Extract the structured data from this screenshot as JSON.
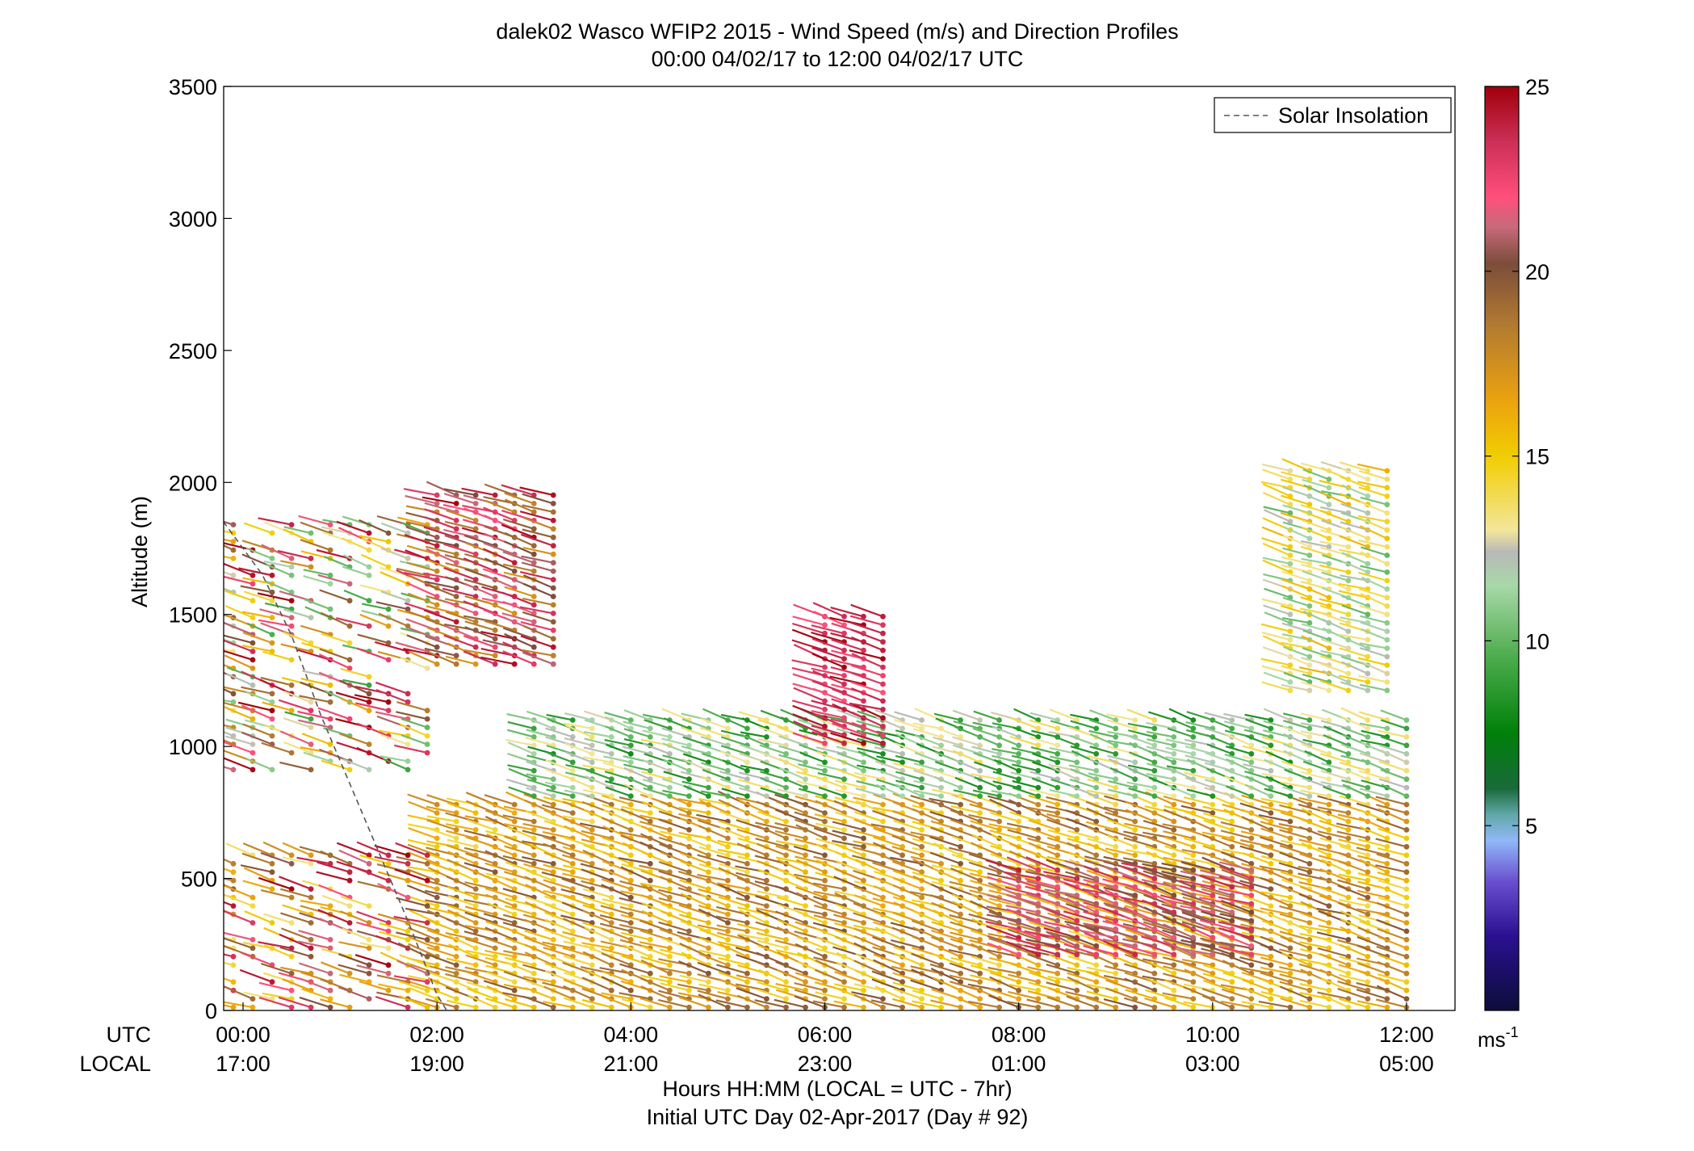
{
  "chart_data": {
    "type": "scatter",
    "title": "dalek02 Wasco WFIP2 2015 - Wind Speed (m/s) and Direction Profiles",
    "subtitle": "00:00 04/02/17 to 12:00 04/02/17  UTC",
    "xlabel": "Hours HH:MM  (LOCAL = UTC - 7hr)",
    "xlabel2": "Initial UTC Day 02-Apr-2017 (Day # 92)",
    "ylabel": "Altitude (m)",
    "xlim": [
      -0.2,
      12.5
    ],
    "ylim": [
      0,
      3500
    ],
    "row_labels": [
      "UTC",
      "LOCAL"
    ],
    "x_ticks": [
      {
        "value": 0,
        "utc": "00:00",
        "local": "17:00"
      },
      {
        "value": 2,
        "utc": "02:00",
        "local": "19:00"
      },
      {
        "value": 4,
        "utc": "04:00",
        "local": "21:00"
      },
      {
        "value": 6,
        "utc": "06:00",
        "local": "23:00"
      },
      {
        "value": 8,
        "utc": "08:00",
        "local": "01:00"
      },
      {
        "value": 10,
        "utc": "10:00",
        "local": "03:00"
      },
      {
        "value": 12,
        "utc": "12:00",
        "local": "05:00"
      }
    ],
    "y_ticks": [
      "0",
      "500",
      "1000",
      "1500",
      "2000",
      "2500",
      "3000",
      "3500"
    ],
    "legend": {
      "label": "Solar Insolation",
      "placement": "top-right"
    },
    "solar_insolation": {
      "x": [
        -0.5,
        0.2,
        0.5,
        0.8,
        1.1,
        1.4,
        1.7,
        2.0,
        2.1
      ],
      "y": [
        2000,
        1650,
        1420,
        1120,
        860,
        600,
        340,
        60,
        0
      ]
    },
    "colorbar": {
      "ticks": [
        "5",
        "10",
        "15",
        "20",
        "25"
      ],
      "tick_values": [
        5,
        10,
        15,
        20,
        25
      ],
      "range": [
        0,
        25
      ],
      "unit": "ms",
      "unit_exp": "-1",
      "stops": [
        {
          "v": 0,
          "c": "#0d0d3a"
        },
        {
          "v": 2,
          "c": "#2a1090"
        },
        {
          "v": 3.5,
          "c": "#6a50d0"
        },
        {
          "v": 4.6,
          "c": "#90b8f8"
        },
        {
          "v": 5.3,
          "c": "#60a8a8"
        },
        {
          "v": 6.0,
          "c": "#1a6a3a"
        },
        {
          "v": 7.5,
          "c": "#00800a"
        },
        {
          "v": 9.5,
          "c": "#4aab4a"
        },
        {
          "v": 11.5,
          "c": "#a8d8a8"
        },
        {
          "v": 12.4,
          "c": "#b8b8b8"
        },
        {
          "v": 13,
          "c": "#f3e69a"
        },
        {
          "v": 15,
          "c": "#f1cd00"
        },
        {
          "v": 16.5,
          "c": "#eba20f"
        },
        {
          "v": 18.5,
          "c": "#b37b30"
        },
        {
          "v": 20.2,
          "c": "#7c4d3a"
        },
        {
          "v": 21.2,
          "c": "#c66a7a"
        },
        {
          "v": 22.0,
          "c": "#ff4f7b"
        },
        {
          "v": 23.5,
          "c": "#cc2f57"
        },
        {
          "v": 25,
          "c": "#a0000a"
        }
      ]
    },
    "wind_regions": [
      {
        "x": [
          2.0,
          12.0
        ],
        "alt": [
          0,
          800
        ],
        "speed_low": 14,
        "speed_high": 20
      },
      {
        "x": [
          3.0,
          12.0
        ],
        "alt": [
          800,
          1100
        ],
        "speed_low": 8,
        "speed_high": 14
      },
      {
        "x": [
          8.0,
          10.5
        ],
        "alt": [
          200,
          550
        ],
        "speed_low": 20,
        "speed_high": 24
      },
      {
        "x": [
          10.8,
          11.8
        ],
        "alt": [
          1200,
          2050
        ],
        "speed_low": 10,
        "speed_high": 16
      },
      {
        "x": [
          6.0,
          6.6
        ],
        "alt": [
          1000,
          1500
        ],
        "speed_low": 22,
        "speed_high": 25
      },
      {
        "x": [
          -0.1,
          2.0
        ],
        "alt": [
          900,
          1850
        ],
        "speed_low": 9,
        "speed_high": 25
      },
      {
        "x": [
          -0.1,
          2.0
        ],
        "alt": [
          0,
          600
        ],
        "speed_low": 13,
        "speed_high": 25
      },
      {
        "x": [
          2.0,
          3.2
        ],
        "alt": [
          1300,
          1970
        ],
        "speed_low": 17,
        "speed_high": 25
      }
    ]
  }
}
